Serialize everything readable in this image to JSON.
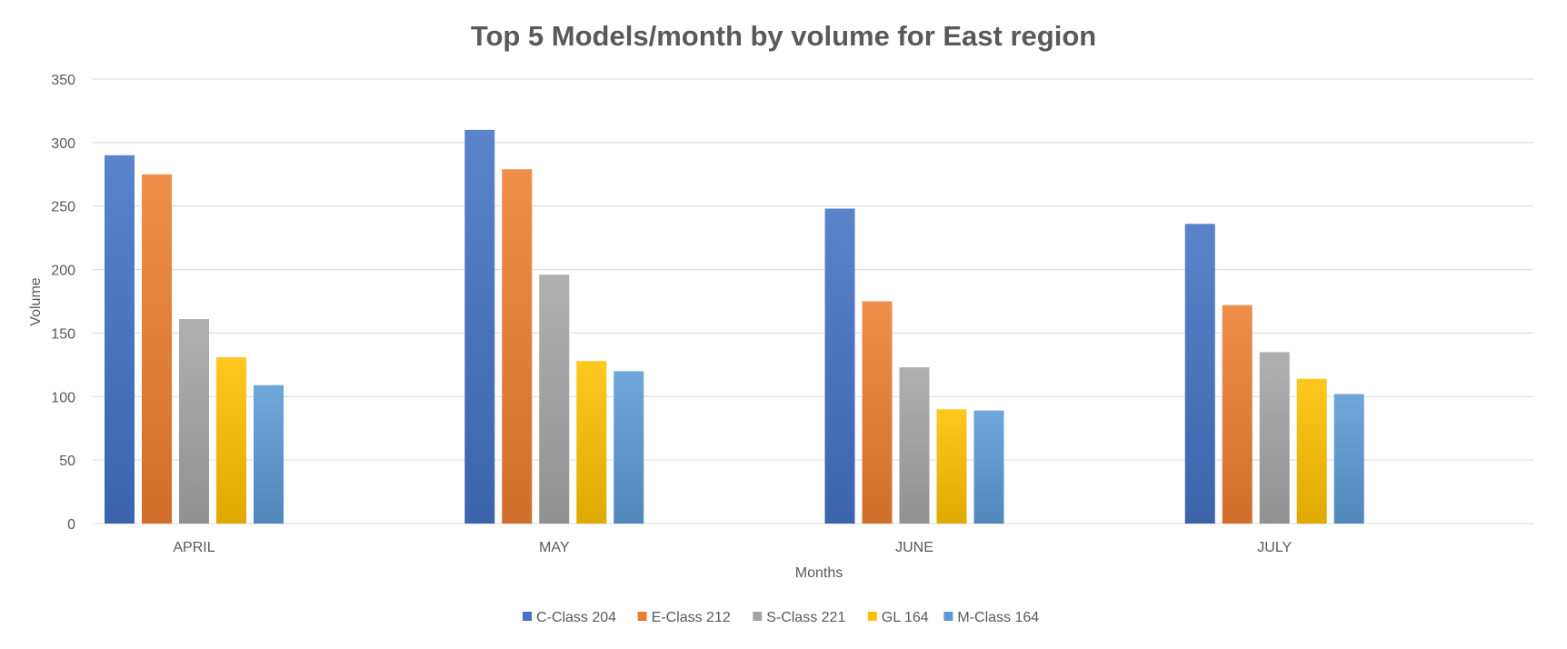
{
  "chart_data": {
    "type": "bar",
    "title": "Top 5 Models/month by volume for East region",
    "xlabel": "Months",
    "ylabel": "Volume",
    "ylim": [
      0,
      350
    ],
    "yticks": [
      0,
      50,
      100,
      150,
      200,
      250,
      300,
      350
    ],
    "grid": true,
    "legend_position": "bottom",
    "categories": [
      "APRIL",
      "MAY",
      "JUNE",
      "JULY"
    ],
    "series": [
      {
        "name": "C-Class 204",
        "color": "#4472c4",
        "values": [
          290,
          310,
          248,
          236
        ]
      },
      {
        "name": "E-Class 212",
        "color": "#ed7d31",
        "values": [
          275,
          279,
          175,
          172
        ]
      },
      {
        "name": "S-Class 221",
        "color": "#a5a5a5",
        "values": [
          161,
          196,
          123,
          135
        ]
      },
      {
        "name": "GL 164",
        "color": "#ffc000",
        "values": [
          131,
          128,
          90,
          114
        ]
      },
      {
        "name": "M-Class 164",
        "color": "#5b9bd5",
        "values": [
          109,
          120,
          89,
          102
        ]
      }
    ]
  }
}
